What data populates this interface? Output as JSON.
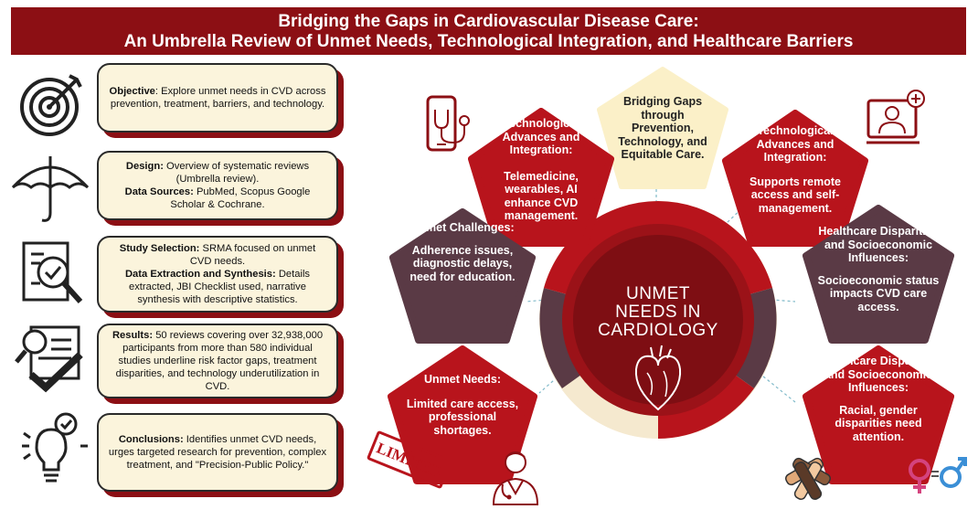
{
  "header": {
    "title_line1": "Bridging the Gaps in Cardiovascular Disease Care:",
    "title_line2": "An Umbrella Review of Unmet Needs, Technological Integration, and Healthcare Barriers"
  },
  "left_cards": [
    {
      "p1_label": "Objective",
      "p1_text": ": Explore unmet needs in CVD across prevention, treatment, barriers, and technology."
    },
    {
      "p1_label": "Design:",
      "p1_text": " Overview of systematic reviews (Umbrella review).",
      "p2_label": "Data Sources:",
      "p2_text": " PubMed, Scopus Google Scholar & Cochrane."
    },
    {
      "p1_label": "Study Selection:",
      "p1_text": " SRMA focused on unmet CVD needs.",
      "p2_label": "Data Extraction and Synthesis:",
      "p2_text": " Details extracted, JBI Checklist used, narrative synthesis with descriptive statistics."
    },
    {
      "p1_label": "Results:",
      "p1_text": " 50 reviews covering over 32,938,000 participants from more than 580 individual studies underline risk factor gaps, treatment disparities, and technology underutilization in CVD."
    },
    {
      "p1_label": "Conclusions:",
      "p1_text": " Identifies unmet CVD needs, urges targeted research for prevention, complex treatment, and \"Precision-Public Policy.\""
    }
  ],
  "hub": {
    "line1": "UNMET",
    "line2": "NEEDS IN",
    "line3": "CARDIOLOGY"
  },
  "pentagons": {
    "top": {
      "text": "Bridging Gaps through Prevention, Technology, and Equitable Care."
    },
    "tech_left": {
      "title": "Technological Advances and Integration:",
      "body": "Telemedicine, wearables, AI enhance CVD management."
    },
    "tech_right": {
      "title": "Technological Advances and Integration:",
      "body": "Supports remote access and self-management."
    },
    "challenges": {
      "title": "Unmet Challenges:",
      "body": "Adherence issues, diagnostic delays, need for education."
    },
    "disparities_socio": {
      "title": "Healthcare Disparities and Socioeconomic Influences:",
      "body": "Socioeconomic status impacts CVD care access."
    },
    "unmet_needs": {
      "title": "Unmet Needs:",
      "body": "Limited care access, professional shortages."
    },
    "disparities_racial": {
      "title": "Healthcare Disparities and Socioeconomic Influences:",
      "body": "Racial, gender disparities need attention."
    }
  },
  "stamp": {
    "text": "LIMITED"
  },
  "colors": {
    "dark_red": "#8c0f14",
    "red": "#b8141c",
    "plum": "#5a3a45",
    "cream": "#fbf0c8",
    "pink": "#d4437e",
    "blue": "#3b8fd6"
  },
  "icons": [
    "target-icon",
    "umbrella-icon",
    "checklist-magnifier-icon",
    "document-check-icon",
    "lightbulb-check-icon",
    "smartphone-stethoscope-icon",
    "doctor-computer-icon",
    "heart-icon",
    "doctor-icon",
    "hands-together-icon",
    "gender-symbols-icon",
    "limited-stamp-icon"
  ]
}
